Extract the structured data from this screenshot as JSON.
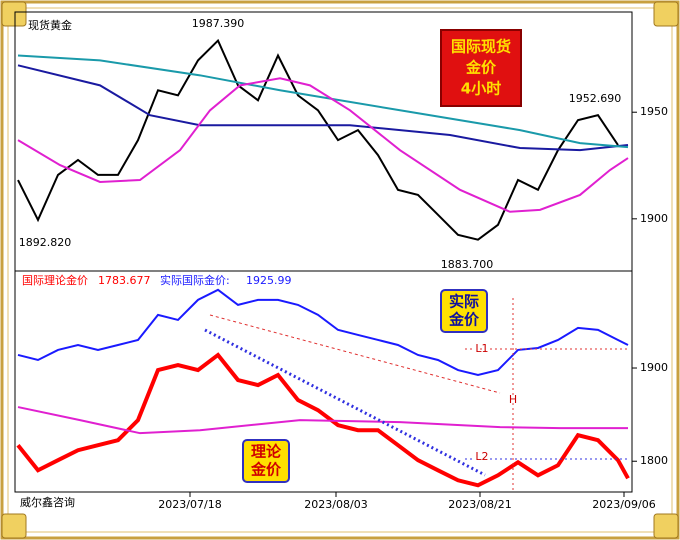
{
  "chart_data": [
    {
      "type": "line",
      "title": "现货黄金",
      "badge": [
        "国际现货",
        "金价",
        "4小时"
      ],
      "xlim": [
        0,
        61
      ],
      "ylim": [
        1876,
        1997
      ],
      "yticks": [
        1900,
        1950
      ],
      "annotations": [
        "1987.390",
        "1892.820",
        "1883.700",
        "1952.690"
      ],
      "series": [
        {
          "name": "price",
          "color": "#000000",
          "x": [
            0,
            2,
            4,
            6,
            8,
            10,
            12,
            14,
            16,
            18,
            20,
            22,
            24,
            26,
            28,
            30,
            32,
            34,
            36,
            38,
            40,
            42,
            44,
            46,
            48,
            50,
            52,
            54,
            56,
            58,
            60
          ],
          "values": [
            1918.2,
            1899.5,
            1920.6,
            1927.6,
            1920.6,
            1920.6,
            1936.9,
            1960.3,
            1957.9,
            1974.3,
            1983.6,
            1962.6,
            1955.6,
            1976.6,
            1957.9,
            1950.9,
            1936.9,
            1941.6,
            1929.9,
            1913.6,
            1911.2,
            1901.9,
            1892.5,
            1890.2,
            1897.2,
            1918.2,
            1913.6,
            1932.2,
            1946.3,
            1948.6,
            1934.6
          ]
        },
        {
          "name": "ma-long",
          "color": "#1a1aa0",
          "x": [
            0,
            8.2,
            13.2,
            18.2,
            28.2,
            33.2,
            43.2,
            50.2,
            56.2,
            61
          ],
          "values": [
            1972.0,
            1962.6,
            1948.6,
            1943.9,
            1943.9,
            1943.9,
            1939.3,
            1933.2,
            1932.2,
            1934.6
          ]
        },
        {
          "name": "ma-mid",
          "color": "#1a9aaa",
          "x": [
            0,
            8.2,
            18.2,
            26.2,
            38.2,
            50.2,
            56.2,
            61
          ],
          "values": [
            1976.6,
            1974.3,
            1967.3,
            1960.3,
            1950.9,
            1941.6,
            1935.5,
            1933.6
          ]
        },
        {
          "name": "ma-short",
          "color": "#e020d0",
          "x": [
            0,
            4.2,
            8.2,
            12.2,
            16.2,
            19.2,
            22.2,
            26.2,
            29.2,
            33.2,
            38.2,
            44.2,
            49.2,
            52.2,
            56.2,
            59.2,
            61
          ],
          "values": [
            1936.9,
            1925.2,
            1917.3,
            1918.2,
            1932.2,
            1950.9,
            1962.6,
            1965.9,
            1962.6,
            1950.9,
            1932.2,
            1913.6,
            1903.3,
            1904.2,
            1911.2,
            1922.9,
            1928.5
          ]
        }
      ]
    },
    {
      "type": "line",
      "xlim": [
        0,
        61
      ],
      "ylim": [
        1767,
        2003
      ],
      "yticks": [
        1800,
        1900
      ],
      "xticks": [
        {
          "value": 17.2,
          "label": "2023/07/18"
        },
        {
          "value": 31.8,
          "label": "2023/08/03"
        },
        {
          "value": 46.2,
          "label": "2023/08/21"
        },
        {
          "value": 60.6,
          "label": "2023/09/06"
        }
      ],
      "badges": [
        [
          "实际",
          "金价"
        ],
        [
          "理论",
          "金价"
        ]
      ],
      "annotations": [
        "L1",
        "L2",
        "H"
      ],
      "footer": "威尔鑫咨询",
      "series": [
        {
          "name": "国际理论金价",
          "last_value": 1783.677,
          "color": "#ff0000",
          "x": [
            0,
            2,
            4,
            6,
            8,
            10,
            12,
            14,
            16,
            18,
            20,
            22,
            24,
            26,
            28,
            30,
            32,
            34,
            36,
            38,
            40,
            42,
            44,
            46,
            48,
            50,
            52,
            54,
            56,
            58,
            60,
            61
          ],
          "values": [
            1817.2,
            1790.3,
            1801.1,
            1811.8,
            1817.2,
            1822.6,
            1844.1,
            1897.8,
            1903.2,
            1897.8,
            1914.0,
            1887.1,
            1881.7,
            1892.5,
            1865.6,
            1854.8,
            1838.7,
            1833.3,
            1833.3,
            1817.2,
            1801.1,
            1790.3,
            1779.6,
            1774.2,
            1784.9,
            1798.9,
            1784.9,
            1795.7,
            1828.0,
            1822.6,
            1801.1,
            1781.7
          ]
        },
        {
          "name": "实际国际金价:",
          "last_value": 1925.99,
          "color": "#1a1aff",
          "x": [
            0,
            2,
            4,
            6,
            8,
            10,
            12,
            14,
            16,
            18,
            20,
            22,
            24,
            26,
            28,
            30,
            32,
            34,
            36,
            38,
            40,
            42,
            44,
            46,
            48,
            50,
            52,
            54,
            56,
            58,
            60,
            61
          ],
          "values": [
            1914.0,
            1908.6,
            1919.4,
            1924.7,
            1919.4,
            1924.7,
            1930.1,
            1957.0,
            1951.6,
            1973.1,
            1983.9,
            1967.7,
            1973.1,
            1973.1,
            1967.7,
            1957.0,
            1940.9,
            1935.5,
            1930.1,
            1924.7,
            1914.0,
            1908.6,
            1897.8,
            1892.5,
            1897.8,
            1919.4,
            1921.5,
            1930.1,
            1943.0,
            1940.9,
            1930.1,
            1924.7
          ]
        },
        {
          "name": "ma",
          "color": "#e020d0",
          "x": [
            0,
            6.2,
            12.2,
            18.2,
            28.2,
            38.2,
            48.2,
            54.2,
            61
          ],
          "values": [
            1858.1,
            1844.1,
            1830.1,
            1833.3,
            1844.1,
            1841.9,
            1836.6,
            1835.5,
            1835.5
          ]
        }
      ]
    }
  ]
}
